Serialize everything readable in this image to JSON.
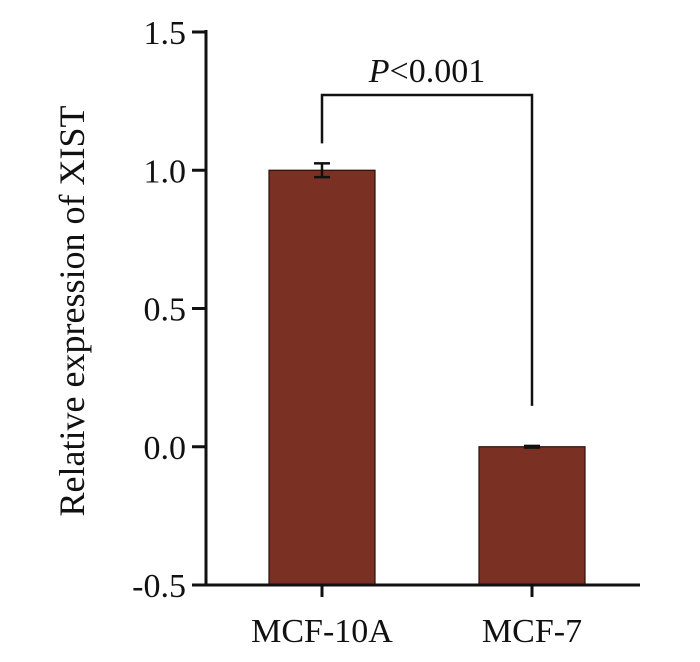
{
  "chart_data": {
    "type": "bar",
    "categories": [
      "MCF-10A",
      "MCF-7"
    ],
    "values": [
      1.0,
      0.0
    ],
    "errors": [
      0.025,
      0.003
    ],
    "ylabel": "Relative expression of XIST",
    "ylim": [
      -0.5,
      1.5
    ],
    "yticks": [
      -0.5,
      0.0,
      0.5,
      1.0,
      1.5
    ],
    "ytick_labels": [
      "-0.5",
      "0.0",
      "0.5",
      "1.0",
      "1.5"
    ],
    "grid": false,
    "bar_color": "#7a3124",
    "annotation": {
      "italic": "P",
      "rest": "<0.001"
    }
  }
}
